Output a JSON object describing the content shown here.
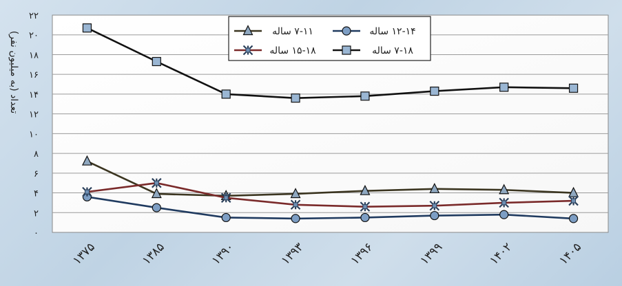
{
  "chart_data": {
    "type": "line",
    "title": "",
    "xlabel": "",
    "ylabel": "تعداد (به میلیون نفر)",
    "categories": [
      "۱۳۷۵",
      "۱۳۸۵",
      "۱۳۹۰",
      "۱۳۹۳",
      "۱۳۹۶",
      "۱۳۹۹",
      "۱۴۰۲",
      "۱۴۰۵"
    ],
    "y_ticks": [
      "۰",
      "۲",
      "۴",
      "۶",
      "۸",
      "۱۰",
      "۱۲",
      "۱۴",
      "۱۶",
      "۱۸",
      "۲۰",
      "۲۲"
    ],
    "ylim": [
      0,
      22
    ],
    "grid": true,
    "legend_position": "top-center",
    "series": [
      {
        "name": "۷-۱۱ ساله",
        "marker": "triangle",
        "color": "#3b3520",
        "values": [
          7.2,
          3.9,
          3.7,
          3.9,
          4.2,
          4.4,
          4.3,
          4.0
        ]
      },
      {
        "name": "۱۲-۱۴ ساله",
        "marker": "circle",
        "color": "#1f3a5f",
        "values": [
          3.6,
          2.5,
          1.5,
          1.4,
          1.5,
          1.7,
          1.8,
          1.4
        ]
      },
      {
        "name": "۱۵-۱۸ ساله",
        "marker": "star",
        "color": "#7a2a2a",
        "values": [
          4.1,
          5.0,
          3.5,
          2.8,
          2.6,
          2.7,
          3.0,
          3.2
        ]
      },
      {
        "name": "۷-۱۸ ساله",
        "marker": "square",
        "color": "#111111",
        "values": [
          20.7,
          17.3,
          14.0,
          13.6,
          13.8,
          14.3,
          14.7,
          14.6
        ]
      }
    ]
  }
}
